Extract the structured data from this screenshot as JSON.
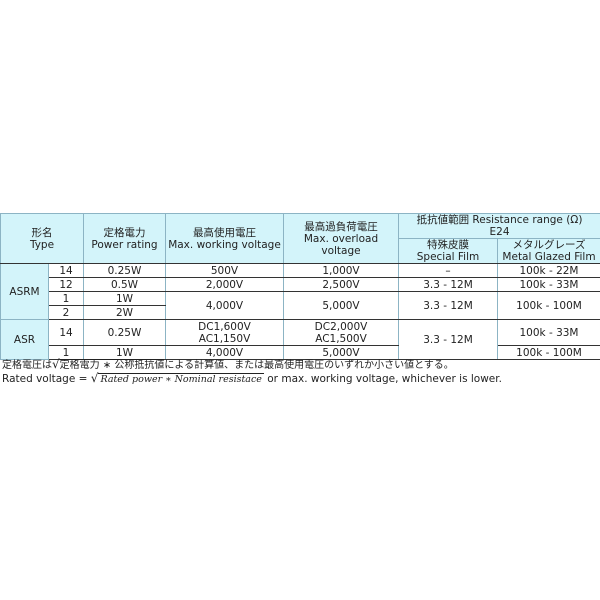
{
  "header": {
    "type": {
      "ja": "形名",
      "en": "Type"
    },
    "power": {
      "ja": "定格電力",
      "en": "Power rating"
    },
    "working": {
      "ja": "最高使用電圧",
      "en": "Max. working voltage"
    },
    "overload": {
      "ja": "最高過負荷電圧",
      "en": "Max. overload voltage"
    },
    "resistance": {
      "title": "抵抗値範囲 Resistance range (Ω)",
      "series": "E24"
    },
    "special": {
      "ja": "特殊皮膜",
      "en": "Special Film"
    },
    "metal": {
      "ja": "メタルグレーズ",
      "en": "Metal Glazed Film"
    }
  },
  "rows": {
    "asrm": {
      "type": "ASRM",
      "r1": {
        "size": "14",
        "power": "0.25W",
        "working": "500V",
        "overload": "1,000V",
        "special": "–",
        "metal": "100k - 22M"
      },
      "r2": {
        "size": "12",
        "power": "0.5W",
        "working": "2,000V",
        "overload": "2,500V",
        "special": "3.3 - 12M",
        "metal": "100k - 33M"
      },
      "r3": {
        "size": "1",
        "power": "1W"
      },
      "r4": {
        "size": "2",
        "power": "2W"
      },
      "r34": {
        "working": "4,000V",
        "overload": "5,000V",
        "special": "3.3 - 12M",
        "metal": "100k - 100M"
      }
    },
    "asr": {
      "type": "ASR",
      "r1": {
        "size": "14",
        "power": "0.25W",
        "working_dc": "DC1,600V",
        "working_ac": "AC1,150V",
        "overload_dc": "DC2,000V",
        "overload_ac": "AC1,500V",
        "metal": "100k - 33M"
      },
      "r2": {
        "size": "1",
        "power": "1W",
        "working": "4,000V",
        "overload": "5,000V",
        "metal": "100k - 100M"
      },
      "special": "3.3 - 12M"
    }
  },
  "notes": {
    "ja_pre": "定格電圧は",
    "ja_formula": "定格電力 ∗ 公称抵抗値",
    "ja_post": "による計算値、または最高使用電圧のいずれか小さい値とする。",
    "en_pre": "Rated voltage = ",
    "en_formula": "Rated power  ∗ Nominal resistace",
    "en_post": " or max. working voltage, whichever is lower."
  }
}
